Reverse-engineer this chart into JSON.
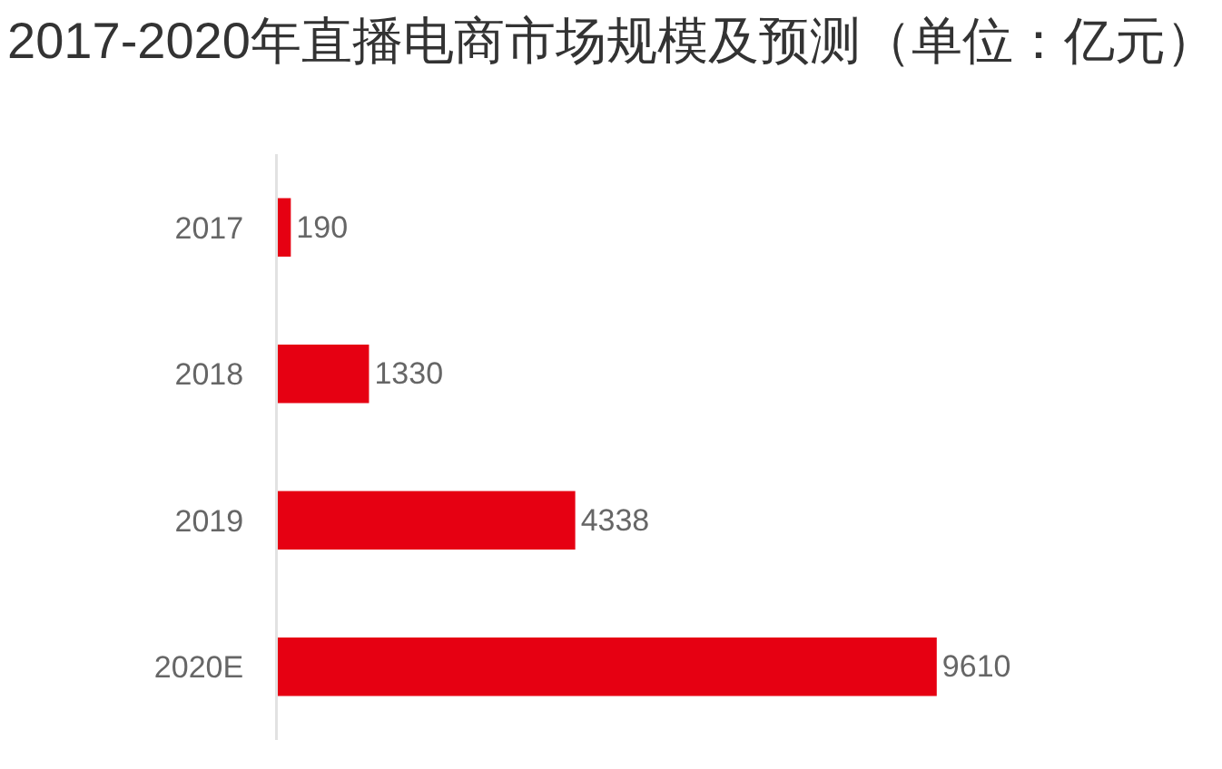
{
  "chart_data": {
    "type": "bar",
    "orientation": "horizontal",
    "title": "2017-2020年直播电商市场规模及预测（单位：亿元）",
    "categories": [
      "2017",
      "2018",
      "2019",
      "2020E"
    ],
    "values": [
      190,
      1330,
      4338,
      9610
    ],
    "color": "#e60012",
    "data_labels": true,
    "tick_labels": "y"
  }
}
